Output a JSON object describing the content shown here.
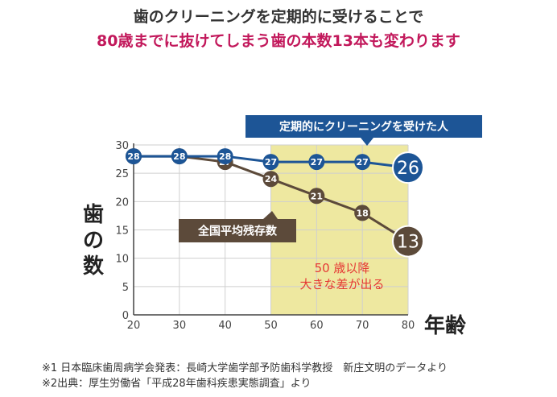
{
  "headline": {
    "line1": "歯のクリーニングを定期的に受けることで",
    "line2": "80歳までに抜けてしまう歯の本数13本も変わります",
    "line2_color": "#c2185b"
  },
  "colors": {
    "regular": "#1d5596",
    "average": "#5c4a3a",
    "highlight": "#eee8a0",
    "annotation": "#e53935",
    "grid": "#cfcfcf",
    "axis": "#444444"
  },
  "chart_data": {
    "type": "line",
    "title": "",
    "xlabel": "年齢",
    "ylabel": "歯の数",
    "x": [
      20,
      30,
      40,
      50,
      60,
      70,
      80
    ],
    "xlim": [
      20,
      80
    ],
    "ylim": [
      0,
      30
    ],
    "xticks": [
      20,
      30,
      40,
      50,
      60,
      70,
      80
    ],
    "yticks": [
      0,
      5,
      10,
      15,
      20,
      25,
      30
    ],
    "grid": true,
    "highlight_range": [
      50,
      80
    ],
    "highlight_label_lines": [
      "50 歳以降",
      "大きな差が出る"
    ],
    "series": [
      {
        "name": "定期的にクリーニングを受けた人",
        "color": "#1d5596",
        "x": [
          20,
          30,
          40,
          50,
          60,
          70,
          80
        ],
        "values": [
          28,
          28,
          28,
          27,
          27,
          27,
          26
        ]
      },
      {
        "name": "全国平均残存数",
        "color": "#5c4a3a",
        "x": [
          20,
          30,
          40,
          50,
          60,
          70,
          80
        ],
        "values": [
          28,
          28,
          27,
          24,
          21,
          18,
          13
        ]
      }
    ]
  },
  "notes": {
    "line1": "※1 日本臨床歯周病学会発表：長崎大学歯学部予防歯科学教授　新庄文明のデータより",
    "line2": "※2出典：厚生労働省「平成28年歯科疾患実態調査」より"
  }
}
